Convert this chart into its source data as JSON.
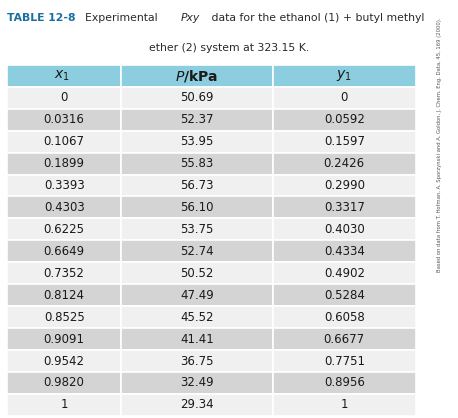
{
  "title_bold": "TABLE 12-8",
  "title_normal_1": " Experimental ",
  "title_italic": "Pxy",
  "title_normal_2": " data for the ethanol (1) + butyl methyl",
  "title_line2": "ether (2) system at 323.15 K.",
  "col_headers": [
    "x₁",
    "P/kPa",
    "y₁"
  ],
  "rows": [
    [
      "0",
      "50.69",
      "0"
    ],
    [
      "0.0316",
      "52.37",
      "0.0592"
    ],
    [
      "0.1067",
      "53.95",
      "0.1597"
    ],
    [
      "0.1899",
      "55.83",
      "0.2426"
    ],
    [
      "0.3393",
      "56.73",
      "0.2990"
    ],
    [
      "0.4303",
      "56.10",
      "0.3317"
    ],
    [
      "0.6225",
      "53.75",
      "0.4030"
    ],
    [
      "0.6649",
      "52.74",
      "0.4334"
    ],
    [
      "0.7352",
      "50.52",
      "0.4902"
    ],
    [
      "0.8124",
      "47.49",
      "0.5284"
    ],
    [
      "0.8525",
      "45.52",
      "0.6058"
    ],
    [
      "0.9091",
      "41.41",
      "0.6677"
    ],
    [
      "0.9542",
      "36.75",
      "0.7751"
    ],
    [
      "0.9820",
      "32.49",
      "0.8956"
    ],
    [
      "1",
      "29.34",
      "1"
    ]
  ],
  "header_bg": "#8dcde0",
  "row_shaded_bg": "#d4d4d4",
  "row_white_bg": "#f0f0f0",
  "text_color": "#1a1a1a",
  "border_color": "#ffffff",
  "title_color": "#1a6fa0",
  "footnote": "Based on data from T. Hofman, A. Sporzynski and A. Goldon, J. Chem. Eng. Data, 45, 169 (2000).",
  "fig_width": 4.58,
  "fig_height": 4.18,
  "dpi": 100
}
